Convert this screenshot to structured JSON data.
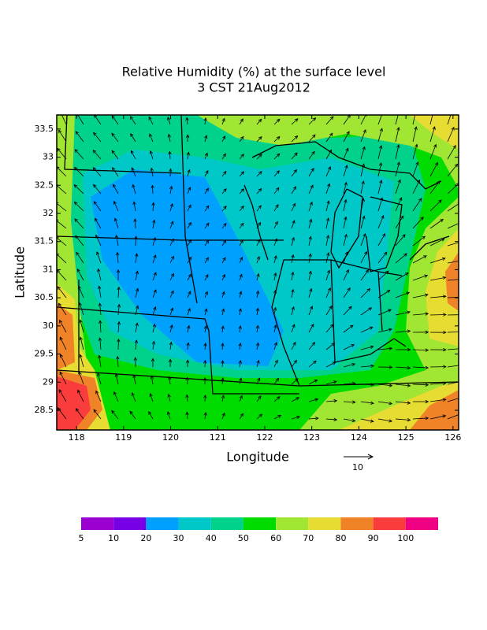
{
  "title": "Relative Humidity (%) at the surface level",
  "subtitle": "3 CST 21Aug2012",
  "x_axis": {
    "label": "Longitude",
    "lim": [
      117.58,
      126.12
    ],
    "ticks": [
      118,
      119,
      120,
      121,
      122,
      123,
      124,
      125,
      126
    ]
  },
  "y_axis": {
    "label": "Latitude",
    "lim": [
      28.15,
      33.75
    ],
    "ticks": [
      28.5,
      29,
      29.5,
      30,
      30.5,
      31,
      31.5,
      32,
      32.5,
      33,
      33.5
    ]
  },
  "vector_key": {
    "label": "10"
  },
  "colorbar": {
    "levels": [
      5,
      10,
      20,
      30,
      40,
      50,
      60,
      70,
      80,
      90,
      100
    ],
    "colors": [
      "#9b00d2",
      "#7800e6",
      "#00a0ff",
      "#00c8c8",
      "#00d28c",
      "#00dc00",
      "#a0e632",
      "#e6dc32",
      "#f08228",
      "#fa3c3c",
      "#f00082"
    ]
  }
}
